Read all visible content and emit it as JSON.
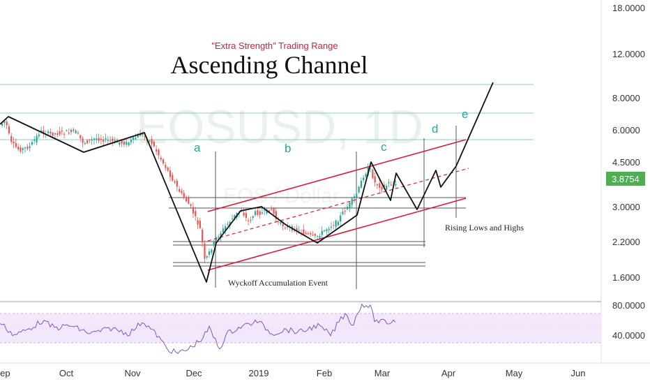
{
  "chart_data": {
    "type": "candlestick",
    "symbol_watermark": "EOSUSD, 1D",
    "watermark_sub": "EOS / Dollar",
    "title": "Ascending Channel",
    "subtitle": "\"Extra Strength\" Trading Range",
    "price_axis": {
      "scale": "log",
      "ticks": [
        "18.0000",
        "12.0000",
        "8.0000",
        "6.0000",
        "4.5000",
        "3.0000",
        "2.2000",
        "1.6000"
      ],
      "tick_values": [
        18,
        12,
        8,
        6,
        4.5,
        3,
        2.2,
        1.6
      ]
    },
    "rsi_axis": {
      "ticks": [
        "80.0000",
        "40.0000"
      ],
      "tick_values": [
        80,
        40
      ]
    },
    "time_axis": {
      "labels": [
        "Sep",
        "Oct",
        "Nov",
        "Dec",
        "2019",
        "Feb",
        "Mar",
        "Apr",
        "May",
        "Jun"
      ]
    },
    "current_price": "3.8754",
    "wave_labels": [
      "a",
      "b",
      "c",
      "d",
      "e"
    ],
    "annotations": [
      "Wyckoff Accumulation Event",
      "Rising Lows and Highs"
    ],
    "colors": {
      "up": "#26a69a",
      "down": "#ef5350",
      "channel": "#d81b3c",
      "support": "#8fcfb0",
      "rsi": "#7e57c2",
      "rsi_band": "#f3e8fb",
      "price_tag": "#4caf50"
    }
  }
}
